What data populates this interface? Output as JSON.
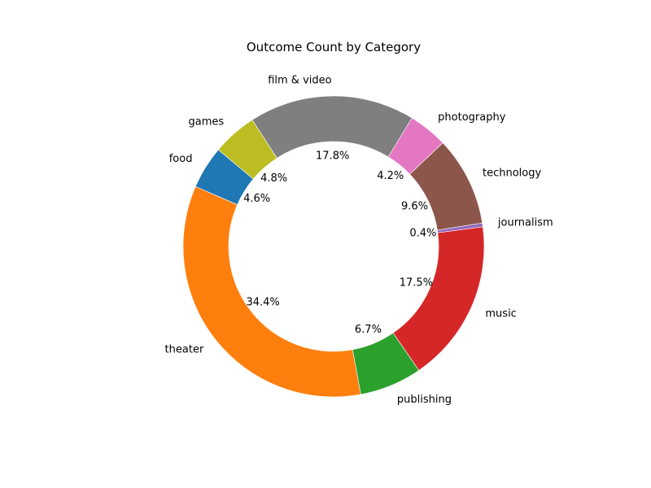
{
  "chart_data": {
    "type": "pie",
    "donut": true,
    "title": "Outcome Count by Category",
    "start_angle_deg": 140,
    "direction": "counterclockwise",
    "slices": [
      {
        "label": "food",
        "percent": 4.6,
        "percent_label": "4.6%",
        "color": "#1f77b4"
      },
      {
        "label": "theater",
        "percent": 34.4,
        "percent_label": "34.4%",
        "color": "#ff7f0e"
      },
      {
        "label": "publishing",
        "percent": 6.7,
        "percent_label": "6.7%",
        "color": "#2ca02c"
      },
      {
        "label": "music",
        "percent": 17.5,
        "percent_label": "17.5%",
        "color": "#d62728"
      },
      {
        "label": "journalism",
        "percent": 0.4,
        "percent_label": "0.4%",
        "color": "#9467bd"
      },
      {
        "label": "technology",
        "percent": 9.6,
        "percent_label": "9.6%",
        "color": "#8c564b"
      },
      {
        "label": "photography",
        "percent": 4.2,
        "percent_label": "4.2%",
        "color": "#e377c2"
      },
      {
        "label": "film & video",
        "percent": 17.8,
        "percent_label": "17.8%",
        "color": "#7f7f7f"
      },
      {
        "label": "games",
        "percent": 4.8,
        "percent_label": "4.8%",
        "color": "#bcbd22"
      }
    ]
  }
}
